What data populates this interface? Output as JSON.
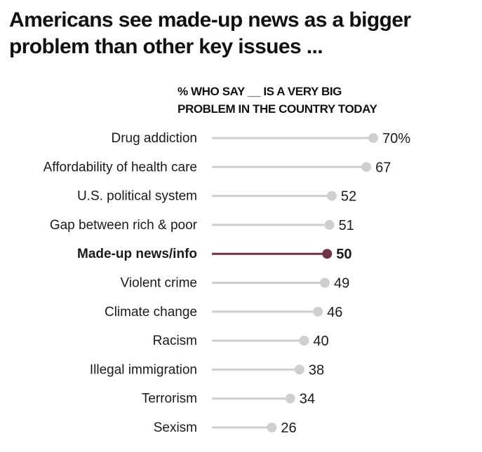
{
  "title": "Americans see made-up news as a bigger problem than other key issues ...",
  "subtitle_line1": "% WHO SAY __ IS A VERY BIG",
  "subtitle_line2": "PROBLEM IN THE COUNTRY TODAY",
  "colors": {
    "base": "#cfcfcf",
    "highlight": "#6e3347",
    "text": "#1a1a1a"
  },
  "chart_data": {
    "type": "dot",
    "title": "Americans see made-up news as a bigger problem than other key issues ...",
    "subtitle": "% who say __ is a very big problem in the country today",
    "xlabel": "",
    "ylabel": "",
    "xlim": [
      0,
      70
    ],
    "grid": false,
    "legend": "none",
    "highlight_category": "Made-up news/info",
    "value_suffix_first": "%",
    "categories": [
      "Drug addiction",
      "Affordability of health care",
      "U.S. political system",
      "Gap between rich & poor",
      "Made-up news/info",
      "Violent crime",
      "Climate change",
      "Racism",
      "Illegal immigration",
      "Terrorism",
      "Sexism"
    ],
    "values": [
      70,
      67,
      52,
      51,
      50,
      49,
      46,
      40,
      38,
      34,
      26
    ],
    "value_labels": [
      "70%",
      "67",
      "52",
      "51",
      "50",
      "49",
      "46",
      "40",
      "38",
      "34",
      "26"
    ]
  }
}
